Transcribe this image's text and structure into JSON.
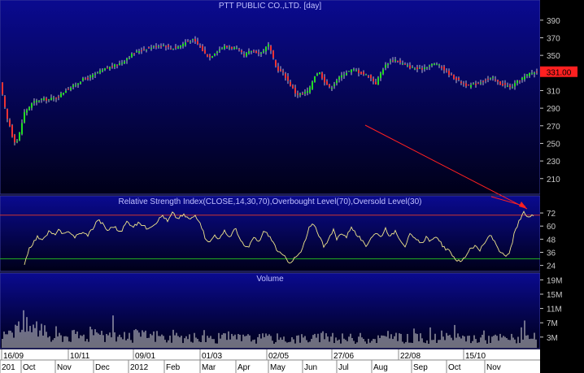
{
  "colors": {
    "panel_top": "#0a0a90",
    "panel_bottom": "#000018",
    "axis_bg": "#000000",
    "axis_text": "#c8c8c8",
    "title_text": "#c0c0ff",
    "candle_up": "#22dd22",
    "candle_down": "#ee3333",
    "wick": "#e8e8e8",
    "rsi_line": "#f0e68c",
    "overbought_line": "#cc3333",
    "oversold_line": "#22aa22",
    "volume_bar": "#dcdcdc",
    "price_tag": "#ff2020",
    "trend_line": "#ff2020",
    "date_bar_bg": "#ffffff",
    "date_text": "#000000"
  },
  "chart_data": [
    {
      "type": "candlestick",
      "title": "PTT PUBLIC CO.,LTD. [day]",
      "yticks": [
        210,
        230,
        250,
        270,
        290,
        310,
        330,
        350,
        370,
        390
      ],
      "ylim": [
        195,
        400
      ],
      "last_price_label": "331.00",
      "last_price": 331,
      "anchors": [
        [
          0,
          318
        ],
        [
          4,
          300
        ],
        [
          8,
          280
        ],
        [
          12,
          270
        ],
        [
          16,
          255
        ],
        [
          20,
          250
        ],
        [
          24,
          262
        ],
        [
          30,
          285
        ],
        [
          40,
          296
        ],
        [
          50,
          300
        ],
        [
          60,
          300
        ],
        [
          70,
          302
        ],
        [
          80,
          310
        ],
        [
          90,
          315
        ],
        [
          100,
          322
        ],
        [
          110,
          325
        ],
        [
          120,
          330
        ],
        [
          130,
          335
        ],
        [
          140,
          338
        ],
        [
          150,
          342
        ],
        [
          160,
          350
        ],
        [
          170,
          355
        ],
        [
          180,
          358
        ],
        [
          190,
          360
        ],
        [
          200,
          362
        ],
        [
          210,
          358
        ],
        [
          220,
          360
        ],
        [
          230,
          366
        ],
        [
          236,
          368
        ],
        [
          244,
          362
        ],
        [
          252,
          352
        ],
        [
          258,
          348
        ],
        [
          266,
          355
        ],
        [
          276,
          360
        ],
        [
          290,
          358
        ],
        [
          300,
          350
        ],
        [
          310,
          356
        ],
        [
          320,
          352
        ],
        [
          330,
          362
        ],
        [
          340,
          335
        ],
        [
          348,
          330
        ],
        [
          356,
          318
        ],
        [
          364,
          306
        ],
        [
          372,
          306
        ],
        [
          380,
          310
        ],
        [
          386,
          326
        ],
        [
          392,
          332
        ],
        [
          398,
          322
        ],
        [
          406,
          312
        ],
        [
          414,
          322
        ],
        [
          424,
          330
        ],
        [
          434,
          334
        ],
        [
          444,
          330
        ],
        [
          454,
          326
        ],
        [
          462,
          318
        ],
        [
          470,
          334
        ],
        [
          478,
          343
        ],
        [
          486,
          345
        ],
        [
          496,
          340
        ],
        [
          506,
          336
        ],
        [
          516,
          334
        ],
        [
          526,
          338
        ],
        [
          536,
          341
        ],
        [
          546,
          334
        ],
        [
          556,
          326
        ],
        [
          566,
          320
        ],
        [
          576,
          315
        ],
        [
          586,
          318
        ],
        [
          596,
          322
        ],
        [
          606,
          324
        ],
        [
          614,
          318
        ],
        [
          622,
          316
        ],
        [
          628,
          313
        ],
        [
          636,
          320
        ],
        [
          644,
          325
        ],
        [
          652,
          330
        ],
        [
          660,
          331
        ]
      ]
    },
    {
      "type": "line",
      "title": "Relative Strength Index(CLOSE,14,30,70),Overbought Level(70),Oversold Level(30)",
      "yticks": [
        24,
        36,
        48,
        60,
        72
      ],
      "ylim": [
        20,
        78
      ],
      "overbought": 70,
      "oversold": 30,
      "anchors": [
        [
          30,
          26
        ],
        [
          36,
          40
        ],
        [
          42,
          46
        ],
        [
          46,
          50
        ],
        [
          54,
          48
        ],
        [
          60,
          55
        ],
        [
          66,
          52
        ],
        [
          72,
          56
        ],
        [
          78,
          52
        ],
        [
          86,
          55
        ],
        [
          92,
          50
        ],
        [
          100,
          54
        ],
        [
          108,
          52
        ],
        [
          116,
          60
        ],
        [
          120,
          66
        ],
        [
          126,
          62
        ],
        [
          132,
          56
        ],
        [
          140,
          60
        ],
        [
          148,
          54
        ],
        [
          156,
          64
        ],
        [
          164,
          60
        ],
        [
          172,
          63
        ],
        [
          180,
          58
        ],
        [
          190,
          62
        ],
        [
          200,
          70
        ],
        [
          206,
          64
        ],
        [
          212,
          72
        ],
        [
          218,
          67
        ],
        [
          226,
          70
        ],
        [
          234,
          66
        ],
        [
          240,
          70
        ],
        [
          246,
          64
        ],
        [
          252,
          50
        ],
        [
          258,
          45
        ],
        [
          264,
          52
        ],
        [
          270,
          48
        ],
        [
          276,
          55
        ],
        [
          282,
          50
        ],
        [
          290,
          58
        ],
        [
          296,
          46
        ],
        [
          300,
          42
        ],
        [
          306,
          40
        ],
        [
          312,
          50
        ],
        [
          318,
          45
        ],
        [
          324,
          55
        ],
        [
          330,
          52
        ],
        [
          336,
          45
        ],
        [
          342,
          36
        ],
        [
          348,
          33
        ],
        [
          352,
          30
        ],
        [
          356,
          27
        ],
        [
          362,
          30
        ],
        [
          370,
          36
        ],
        [
          376,
          48
        ],
        [
          380,
          58
        ],
        [
          386,
          62
        ],
        [
          392,
          52
        ],
        [
          398,
          42
        ],
        [
          404,
          48
        ],
        [
          410,
          56
        ],
        [
          414,
          48
        ],
        [
          420,
          54
        ],
        [
          426,
          50
        ],
        [
          432,
          60
        ],
        [
          438,
          52
        ],
        [
          444,
          48
        ],
        [
          450,
          40
        ],
        [
          456,
          50
        ],
        [
          462,
          54
        ],
        [
          468,
          50
        ],
        [
          474,
          58
        ],
        [
          480,
          50
        ],
        [
          486,
          56
        ],
        [
          492,
          48
        ],
        [
          498,
          42
        ],
        [
          504,
          52
        ],
        [
          510,
          48
        ],
        [
          518,
          44
        ],
        [
          524,
          50
        ],
        [
          530,
          46
        ],
        [
          538,
          50
        ],
        [
          546,
          40
        ],
        [
          554,
          36
        ],
        [
          560,
          30
        ],
        [
          566,
          27
        ],
        [
          572,
          32
        ],
        [
          578,
          40
        ],
        [
          584,
          42
        ],
        [
          590,
          38
        ],
        [
          596,
          44
        ],
        [
          602,
          52
        ],
        [
          608,
          46
        ],
        [
          614,
          38
        ],
        [
          620,
          32
        ],
        [
          626,
          34
        ],
        [
          632,
          52
        ],
        [
          638,
          64
        ],
        [
          644,
          72
        ],
        [
          650,
          68
        ],
        [
          656,
          70
        ]
      ]
    },
    {
      "type": "bar",
      "title": "Volume",
      "yticks_labels": [
        "3M",
        "7M",
        "11M",
        "15M",
        "19M"
      ],
      "yticks": [
        3,
        7,
        11,
        15,
        19
      ],
      "ylim": [
        0,
        20
      ],
      "seed": 17,
      "spikes": [
        [
          14,
          17
        ],
        [
          18,
          16
        ],
        [
          26,
          14
        ],
        [
          40,
          11
        ],
        [
          120,
          10
        ],
        [
          166,
          9
        ],
        [
          334,
          9
        ],
        [
          526,
          15
        ],
        [
          566,
          11
        ],
        [
          642,
          9
        ]
      ]
    }
  ],
  "x_axis": {
    "day_labels": [
      "16/09",
      "10/11",
      "09/01",
      "01/03",
      "02/05",
      "27/06",
      "22/08",
      "15/10"
    ],
    "month_labels": [
      "201",
      "Oct",
      "Nov",
      "Dec",
      "2012",
      "Feb",
      "Mar",
      "Apr",
      "May",
      "Jun",
      "Jul",
      "Aug",
      "Sep",
      "Oct",
      "Nov"
    ]
  }
}
